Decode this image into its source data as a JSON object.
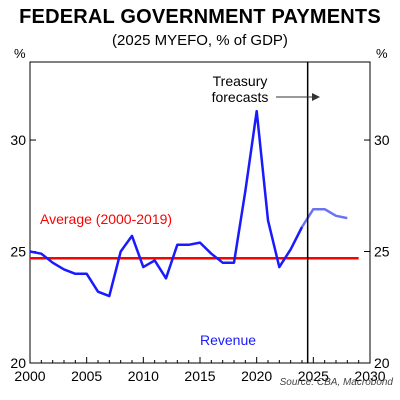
{
  "title": "FEDERAL GOVERNMENT PAYMENTS",
  "subtitle": "(2025 MYEFO, % of GDP)",
  "source": "Source: CBA, Macrobond",
  "chart_data": {
    "type": "line",
    "unit_left": "%",
    "unit_right": "%",
    "xlim": [
      2000,
      2030
    ],
    "ylim": [
      20,
      33.5
    ],
    "x_ticks": [
      2000,
      2005,
      2010,
      2015,
      2020,
      2025,
      2030
    ],
    "y_ticks": [
      20,
      25,
      30
    ],
    "grid": false,
    "colors": {
      "series": "#1a1aff",
      "forecast": "#6b74f0",
      "average": "#ff0000",
      "divider": "#000000"
    },
    "series": [
      {
        "name": "Revenue",
        "x": [
          2000,
          2001,
          2002,
          2003,
          2004,
          2005,
          2006,
          2007,
          2008,
          2009,
          2010,
          2011,
          2012,
          2013,
          2014,
          2015,
          2016,
          2017,
          2018,
          2019,
          2020,
          2021,
          2022,
          2023,
          2024
        ],
        "values": [
          25.0,
          24.9,
          24.5,
          24.2,
          24.0,
          24.0,
          23.2,
          23.0,
          25.0,
          25.7,
          24.3,
          24.6,
          23.8,
          25.3,
          25.3,
          25.4,
          24.9,
          24.5,
          24.5,
          27.7,
          31.3,
          26.4,
          24.3,
          25.1,
          26.1
        ]
      },
      {
        "name": "Forecast",
        "x": [
          2024,
          2025,
          2026,
          2027,
          2028
        ],
        "values": [
          26.1,
          26.9,
          26.9,
          26.6,
          26.5
        ]
      }
    ],
    "average": {
      "label": "Average (2000-2019)",
      "value": 24.7,
      "x_start": 2000,
      "x_end": 2029
    },
    "forecast_start": 2024.5,
    "annotation": {
      "line1": "Treasury",
      "line2": "forecasts",
      "arrow": "→"
    }
  }
}
